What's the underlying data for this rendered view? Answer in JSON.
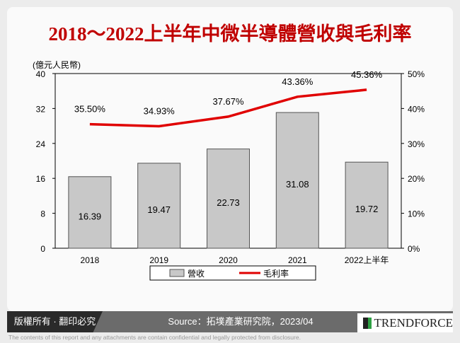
{
  "title": "2018～2022上半年中微半導體營收與毛利率",
  "chart_data": {
    "type": "bar+line",
    "categories": [
      "2018",
      "2019",
      "2020",
      "2021",
      "2022上半年"
    ],
    "series": [
      {
        "name": "營收",
        "type": "bar",
        "axis": "left",
        "values": [
          16.39,
          19.47,
          22.73,
          31.08,
          19.72
        ],
        "color": "#c8c8c8"
      },
      {
        "name": "毛利率",
        "type": "line",
        "axis": "right",
        "values": [
          35.5,
          34.93,
          37.67,
          43.36,
          45.36
        ],
        "labels": [
          "35.50%",
          "34.93%",
          "37.67%",
          "43.36%",
          "45.36%"
        ],
        "color": "#e00000"
      }
    ],
    "ylabel": "(億元人民幣)",
    "ylim": [
      0,
      40
    ],
    "yticks": [
      "0",
      "8",
      "16",
      "24",
      "32",
      "40"
    ],
    "y2lim": [
      0,
      50
    ],
    "y2ticks": [
      "0%",
      "10%",
      "20%",
      "30%",
      "40%",
      "50%"
    ],
    "legend": "bottom",
    "grid": false
  },
  "footer": {
    "copyright": "版權所有 · 翻印必究",
    "source": "Source：拓墣產業研究院，2023/04",
    "logo": "TRENDFORCE",
    "disclaimer": "The contents of this report and any attachments are contain confidential and legally protected from disclosure."
  }
}
